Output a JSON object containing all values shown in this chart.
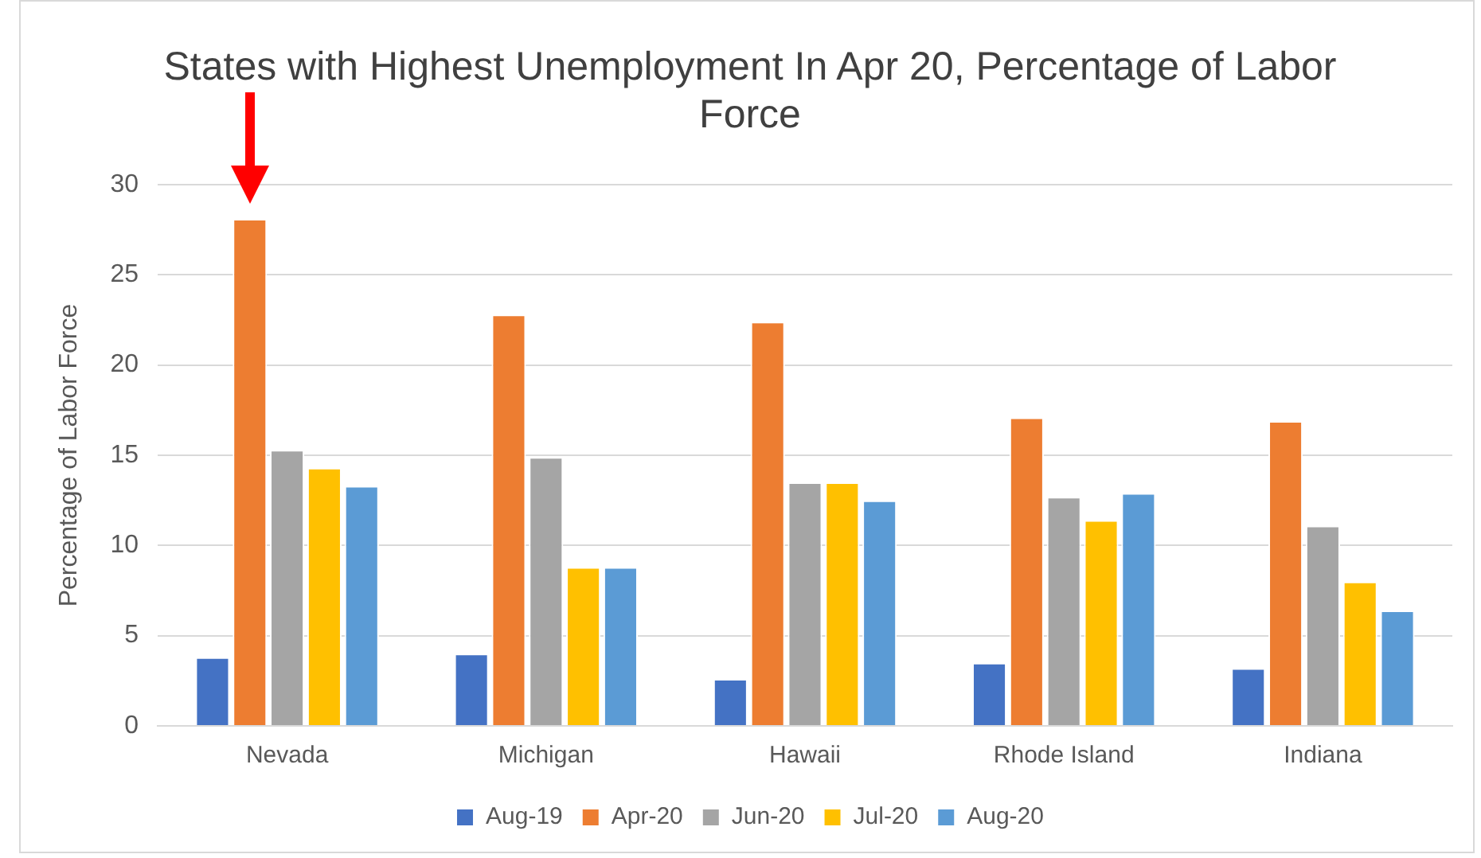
{
  "chart_data": {
    "type": "bar",
    "title": "States with Highest Unemployment In Apr 20, Percentage of Labor Force",
    "ylabel": "Percentage of Labor Force",
    "categories": [
      "Nevada",
      "Michigan",
      "Hawaii",
      "Rhode Island",
      "Indiana"
    ],
    "series": [
      {
        "name": "Aug-19",
        "color": "#4472c4",
        "values": [
          3.8,
          4.0,
          2.6,
          3.5,
          3.2
        ]
      },
      {
        "name": "Apr-20",
        "color": "#ed7d31",
        "values": [
          28.1,
          22.8,
          22.4,
          17.1,
          16.9
        ]
      },
      {
        "name": "Jun-20",
        "color": "#a5a5a5",
        "values": [
          15.3,
          14.9,
          13.5,
          12.7,
          11.1
        ]
      },
      {
        "name": "Jul-20",
        "color": "#ffc000",
        "values": [
          14.3,
          8.8,
          13.5,
          11.4,
          8.0
        ]
      },
      {
        "name": "Aug-20",
        "color": "#5b9bd5",
        "values": [
          13.3,
          8.8,
          12.5,
          12.9,
          6.4
        ]
      }
    ],
    "ylim": [
      0,
      30
    ],
    "yticks": [
      0,
      5,
      10,
      15,
      20,
      25,
      30
    ],
    "grid": "y",
    "legend": "bottom"
  }
}
